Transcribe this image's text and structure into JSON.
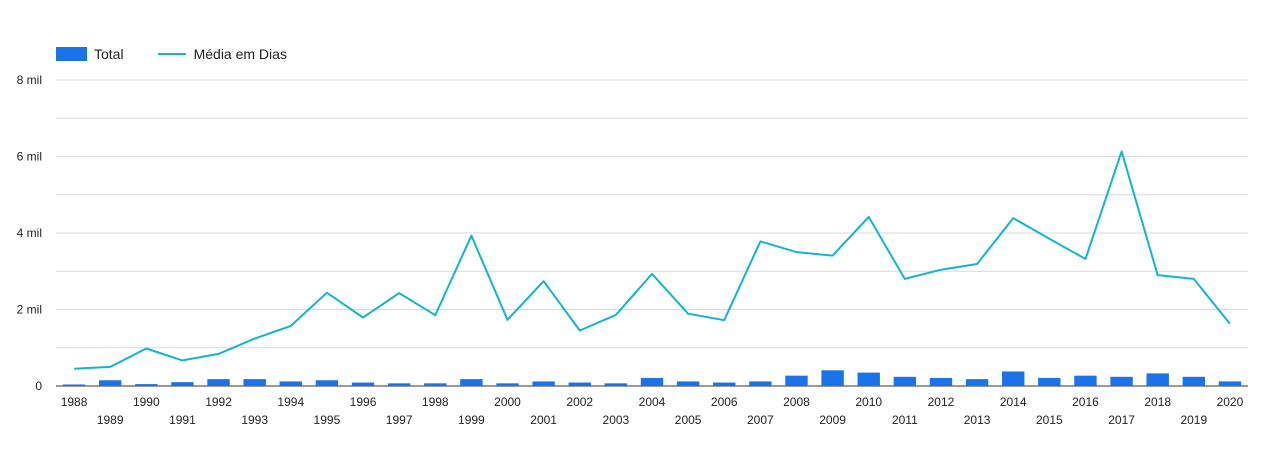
{
  "chart_data": {
    "type": "bar",
    "title": "",
    "xlabel": "",
    "ylabel": "",
    "ylim": [
      0,
      8000
    ],
    "y_ticks": [
      {
        "value": 0,
        "label": "0"
      },
      {
        "value": 2000,
        "label": "2 mil"
      },
      {
        "value": 4000,
        "label": "4 mil"
      },
      {
        "value": 6000,
        "label": "6 mil"
      },
      {
        "value": 8000,
        "label": "8 mil"
      }
    ],
    "categories": [
      "1988",
      "1989",
      "1990",
      "1991",
      "1992",
      "1993",
      "1994",
      "1995",
      "1996",
      "1997",
      "1998",
      "1999",
      "2000",
      "2001",
      "2002",
      "2003",
      "2004",
      "2005",
      "2006",
      "2007",
      "2008",
      "2009",
      "2010",
      "2011",
      "2012",
      "2013",
      "2014",
      "2015",
      "2016",
      "2017",
      "2018",
      "2019",
      "2020"
    ],
    "series": [
      {
        "name": "Total",
        "type": "bar",
        "color": "#1a73e8",
        "values": [
          40,
          150,
          50,
          100,
          180,
          180,
          120,
          150,
          90,
          70,
          70,
          180,
          70,
          120,
          90,
          70,
          210,
          120,
          90,
          120,
          270,
          410,
          350,
          240,
          210,
          180,
          380,
          210,
          270,
          240,
          330,
          240,
          120
        ]
      },
      {
        "name": "Média em Dias",
        "type": "line",
        "color": "#12b5cb",
        "values": [
          450,
          500,
          980,
          670,
          840,
          1240,
          1570,
          2440,
          1790,
          2430,
          1850,
          3930,
          1730,
          2740,
          1450,
          1860,
          2930,
          1890,
          1720,
          3780,
          3500,
          3410,
          4420,
          2800,
          3040,
          3190,
          4390,
          3850,
          3320,
          6130,
          2900,
          2800,
          1630
        ]
      }
    ],
    "legend": {
      "position": "top-left",
      "entries": [
        "Total",
        "Média em Dias"
      ]
    },
    "grid": true
  }
}
